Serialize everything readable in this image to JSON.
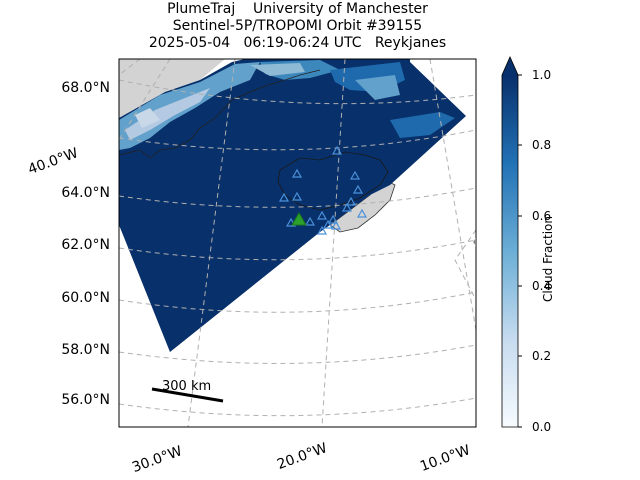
{
  "title": {
    "line1": "PlumeTraj    University of Manchester",
    "line2": "Sentinel-5P/TROPOMI Orbit #39155",
    "line3": "2025-05-04   06:19-06:24 UTC   Reykjanes"
  },
  "map": {
    "lat_labels": [
      "68.0°N",
      "64.0°N",
      "62.0°N",
      "60.0°N",
      "58.0°N",
      "56.0°N"
    ],
    "lon_labels_left": [
      "40.0°W"
    ],
    "lon_labels_bottom": [
      "30.0°W",
      "20.0°W",
      "10.0°W"
    ],
    "scale_bar_label": "300 km",
    "colors": {
      "swath_low_cloud": "#08306b",
      "cloud_high": "#c6dbef",
      "land": "#d3d3d3",
      "gridline": "#b0b0b0",
      "volcano_marker": "#2ca02c",
      "station_marker": "#4a90d9"
    }
  },
  "colorbar": {
    "label": "Cloud Fraction",
    "ticks": [
      "1.0",
      "0.8",
      "0.6",
      "0.4",
      "0.2",
      "0.0"
    ],
    "range": [
      0.0,
      1.0
    ],
    "colormap": "Blues",
    "extend": "max"
  }
}
